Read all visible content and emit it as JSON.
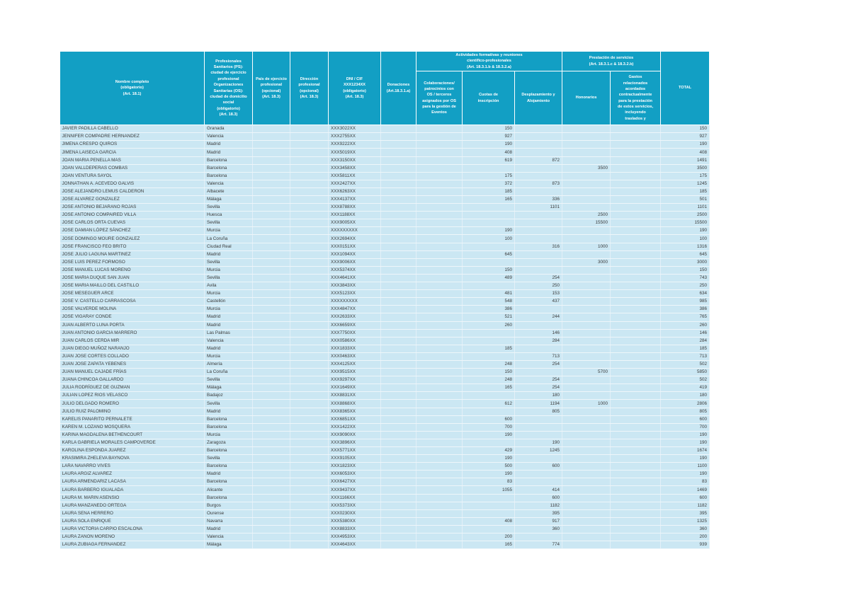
{
  "table": {
    "accent_color": "#129fc4",
    "row_color": "#cbe7f3",
    "header": {
      "nombre": "Nombre completo\n(obligatorio)\n(Art. 18.1)",
      "ps_os": "Profesionales\nSanitarios (PS):\nciudad de ejercicio\nprofesional\nOrganizaciones\nSanitarias (OS):\nciudad de domicilio\nsocial\n(obligatorio)\n(Art. 18.3)",
      "pais": "País de ejercicio\nprofesional\n(opcional)\n(Art. 18.3)",
      "direccion": "Dirección\nprofesional\n(opcional)\n(Art. 18.3)",
      "dni": "DNI / CIF\nXXX1234XX\n(obligatorio)\n(Art. 18.3)",
      "donaciones": "Donaciones\n(Art.18.3.1.a)",
      "grupo_actividades": "Actividades formativas y reuniones\ncientífico-profesionales\n(Art. 18.3.1.b & 18.3.2.a)",
      "colaboraciones": "Colaboraciones/\npatrocinios con\nOS / terceros\nasignados por OS\npara la gestión de\nEventos",
      "cuotas": "Cuotas de\ninscripción",
      "desplazamiento": "Desplazamiento y\nAlojamiento",
      "grupo_prestacion": "Prestación de servicios\n(Art. 18.3.1.c & 18.3.2.b)",
      "honorarios": "Honorarios",
      "gastos": "Gastos\nrelacionados\nacordados\ncontractualmente\npara la prestación\nde estos servicios,\nincluyendo\ntraslados y",
      "total": "TOTAL"
    },
    "rows": [
      {
        "name": "JAVIER PADILLA CABELLO",
        "city": "Granada",
        "dni": "XXX3022XX",
        "cuotas": "150",
        "total": "150"
      },
      {
        "name": "JENNIFER COMPADRE HERNANDEZ",
        "city": "Valencia",
        "dni": "XXX2755XX",
        "cuotas": "927",
        "total": "927"
      },
      {
        "name": "JIMENA CRESPO QUIROS",
        "city": "Madrid",
        "dni": "XXX9222XX",
        "cuotas": "190",
        "total": "190"
      },
      {
        "name": "JIMENA LAISECA GARCIA",
        "city": "Madrid",
        "dni": "XXX5019XX",
        "cuotas": "408",
        "total": "408"
      },
      {
        "name": "JOAN MARIA PENELLA MAS",
        "city": "Barcelona",
        "dni": "XXX3150XX",
        "cuotas": "619",
        "desplazamiento": "872",
        "total": "1491"
      },
      {
        "name": "JOAN VALLDEPERAS COMBAS",
        "city": "Barcelona",
        "dni": "XXX3458XX",
        "honorarios": "3500",
        "total": "3500"
      },
      {
        "name": "JOAN VENTURA SAYOL",
        "city": "Barcelona",
        "dni": "XXX5811XX",
        "cuotas": "175",
        "total": "175"
      },
      {
        "name": "JONNATHAN A. ACEVEDO GALVIS",
        "city": "Valencia",
        "dni": "XXX2427XX",
        "cuotas": "372",
        "desplazamiento": "873",
        "total": "1245"
      },
      {
        "name": "JOSE ALEJANDRO LEMUS CALDERON",
        "city": "Albacete",
        "dni": "XXX6263XX",
        "cuotas": "185",
        "total": "185"
      },
      {
        "name": "JOSE ALVAREZ GONZALEZ",
        "city": "Málaga",
        "dni": "XXX4137XX",
        "cuotas": "165",
        "desplazamiento": "336",
        "total": "501"
      },
      {
        "name": "JOSE ANTONIO BEJARANO ROJAS",
        "city": "Sevilla",
        "dni": "XXX8788XX",
        "desplazamiento": "1101",
        "total": "1101"
      },
      {
        "name": "JOSE ANTONIO COMPAIRED VILLA",
        "city": "Huesca",
        "dni": "XXX1188XX",
        "honorarios": "2500",
        "total": "2500"
      },
      {
        "name": "JOSE CARLOS ORTA CUEVAS",
        "city": "Sevilla",
        "dni": "XXX9005XX",
        "honorarios": "15500",
        "total": "15500"
      },
      {
        "name": "JOSE DAMIAN LÓPEZ SÁNCHEZ",
        "city": "Murcia",
        "dni": "XXXXXXXXX",
        "cuotas": "190",
        "total": "190"
      },
      {
        "name": "JOSE DOMINGO MOURE GONZALEZ",
        "city": "La Coruña",
        "dni": "XXX2694XX",
        "cuotas": "100",
        "total": "100"
      },
      {
        "name": "JOSE FRANCISCO FEO BRITO",
        "city": "Ciudad Real",
        "dni": "XXX0151XX",
        "desplazamiento": "316",
        "honorarios": "1000",
        "total": "1316"
      },
      {
        "name": "JOSE JULIO LAGUNA MARTINEZ",
        "city": "Madrid",
        "dni": "XXX1094XX",
        "cuotas": "645",
        "total": "645"
      },
      {
        "name": "JOSE LUIS PEREZ FORMOSO",
        "city": "Sevilla",
        "dni": "XXX9006XX",
        "honorarios": "3000",
        "total": "3000"
      },
      {
        "name": "JOSE MANUEL LUCAS MORENO",
        "city": "Murcia",
        "dni": "XXX5374XX",
        "cuotas": "150",
        "total": "150"
      },
      {
        "name": "JOSE MARIA DUQUE SAN JUAN",
        "city": "Sevilla",
        "dni": "XXX4641XX",
        "cuotas": "489",
        "desplazamiento": "254",
        "total": "743"
      },
      {
        "name": "JOSE MARIA MAILLO DEL CASTILLO",
        "city": "Avila",
        "dni": "XXX3843XX",
        "desplazamiento": "250",
        "total": "250"
      },
      {
        "name": "JOSE MESEGUER ARCE",
        "city": "Murcia",
        "dni": "XXX5123XX",
        "cuotas": "481",
        "desplazamiento": "153",
        "total": "634"
      },
      {
        "name": "JOSE V. CASTELLO CARRASCOSA",
        "city": "Castellón",
        "dni": "XXXXXXXXX",
        "cuotas": "548",
        "desplazamiento": "437",
        "total": "985"
      },
      {
        "name": "JOSE VALVERDE MOLINA",
        "city": "Murcia",
        "dni": "XXX4847XX",
        "cuotas": "386",
        "total": "386"
      },
      {
        "name": "JOSE VIGARAY CONDE",
        "city": "Madrid",
        "dni": "XXX2633XX",
        "cuotas": "521",
        "desplazamiento": "244",
        "total": "765"
      },
      {
        "name": "JUAN ALBERTO LUNA PORTA",
        "city": "Madrid",
        "dni": "XXX6659XX",
        "cuotas": "260",
        "total": "260"
      },
      {
        "name": "JUAN ANTONIO GARCIA MARRERO",
        "city": "Las Palmas",
        "dni": "XXX7750XX",
        "desplazamiento": "146",
        "total": "146"
      },
      {
        "name": "JUAN CARLOS CERDA MIR",
        "city": "Valencia",
        "dni": "XXX0586XX",
        "desplazamiento": "284",
        "total": "284"
      },
      {
        "name": "JUAN DIEGO MUÑOZ NARANJO",
        "city": "Madrid",
        "dni": "XXX1833XX",
        "cuotas": "185",
        "total": "185"
      },
      {
        "name": "JUAN JOSE CORTES COLLADO",
        "city": "Murcia",
        "dni": "XXX0463XX",
        "desplazamiento": "713",
        "total": "713"
      },
      {
        "name": "JUAN JOSE ZAPATA YEBENES",
        "city": "Almería",
        "dni": "XXX4125XX",
        "cuotas": "248",
        "desplazamiento": "254",
        "total": "502"
      },
      {
        "name": "JUAN MANUEL CAJADE FRÍAS",
        "city": "La Coruña",
        "dni": "XXX9515XX",
        "cuotas": "150",
        "honorarios": "5700",
        "total": "5850"
      },
      {
        "name": "JUANA CHINCOA GALLARDO",
        "city": "Sevilla",
        "dni": "XXX9297XX",
        "cuotas": "248",
        "desplazamiento": "254",
        "total": "502"
      },
      {
        "name": "JULIA RODRÍGUEZ DE GUZMAN",
        "city": "Málaga",
        "dni": "XXX1649XX",
        "cuotas": "165",
        "desplazamiento": "254",
        "total": "419"
      },
      {
        "name": "JULIAN LOPEZ RIOS VELASCO",
        "city": "Badajoz",
        "dni": "XXX8831XX",
        "desplazamiento": "180",
        "total": "180"
      },
      {
        "name": "JULIO DELGADO ROMERO",
        "city": "Sevilla",
        "dni": "XXX8868XX",
        "cuotas": "612",
        "desplazamiento": "1194",
        "honorarios": "1000",
        "total": "2806"
      },
      {
        "name": "JULIO RUIZ PALOMINO",
        "city": "Madrid",
        "dni": "XXX8365XX",
        "desplazamiento": "805",
        "total": "805"
      },
      {
        "name": "KARELIS PANARITO PERNALETE",
        "city": "Barcelona",
        "dni": "XXX6851XX",
        "cuotas": "600",
        "total": "600"
      },
      {
        "name": "KAREN M. LOZANO MOSQUERA",
        "city": "Barcelona",
        "dni": "XXX1422XX",
        "cuotas": "700",
        "total": "700"
      },
      {
        "name": "KARINA MAGDALENA BETHENCOURT",
        "city": "Murcia",
        "dni": "XXX9090XX",
        "cuotas": "190",
        "total": "190"
      },
      {
        "name": "KARLA GABRIELA MORALES CAMPOVERDE",
        "city": "Zaragoza",
        "dni": "XXX3896XX",
        "desplazamiento": "190",
        "total": "190"
      },
      {
        "name": "KAROLINA ESPONDA JUAREZ",
        "city": "Barcelona",
        "dni": "XXX5771XX",
        "cuotas": "429",
        "desplazamiento": "1245",
        "total": "1674"
      },
      {
        "name": "KRASIMIRA ZHELEVA BAYNOVA",
        "city": "Sevilla",
        "dni": "XXX9105XX",
        "cuotas": "190",
        "total": "190"
      },
      {
        "name": "LARA NAVARRO VIVES",
        "city": "Barcelona",
        "dni": "XXX1823XX",
        "cuotas": "500",
        "desplazamiento": "600",
        "total": "1100"
      },
      {
        "name": "LAURA ARGIZ ALVAREZ",
        "city": "Madrid",
        "dni": "XXX6053XX",
        "cuotas": "190",
        "total": "190"
      },
      {
        "name": "LAURA ARMENDARIZ LACASA",
        "city": "Barcelona",
        "dni": "XXX6427XX",
        "cuotas": "83",
        "total": "83"
      },
      {
        "name": "LAURA BARBERO IGUALADA",
        "city": "Alicante",
        "dni": "XXX9437XX",
        "cuotas": "1055",
        "desplazamiento": "414",
        "total": "1469"
      },
      {
        "name": "LAURA M. MARIN ASENSIO",
        "city": "Barcelona",
        "dni": "XXX1166XX",
        "desplazamiento": "600",
        "total": "600"
      },
      {
        "name": "LAURA MANZANEDO ORTEGA",
        "city": "Burgos",
        "dni": "XXX5373XX",
        "desplazamiento": "1182",
        "total": "1182"
      },
      {
        "name": "LAURA SENA HERRERO",
        "city": "Ourense",
        "dni": "XXX0230XX",
        "desplazamiento": "395",
        "total": "395"
      },
      {
        "name": "LAURA SOLA ENRIQUE",
        "city": "Navarra",
        "dni": "XXX5380XX",
        "cuotas": "408",
        "desplazamiento": "917",
        "total": "1325"
      },
      {
        "name": "LAURA VICTORIA CARPIO ESCALONA",
        "city": "Madrid",
        "dni": "XXX8833XX",
        "desplazamiento": "360",
        "total": "360"
      },
      {
        "name": "LAURA ZANON MORENO",
        "city": "Valencia",
        "dni": "XXX4953XX",
        "cuotas": "200",
        "total": "200"
      },
      {
        "name": "LAURA ZUBIAGA FERNANDEZ",
        "city": "Málaga",
        "dni": "XXX4643XX",
        "cuotas": "165",
        "desplazamiento": "774",
        "total": "939"
      }
    ]
  }
}
